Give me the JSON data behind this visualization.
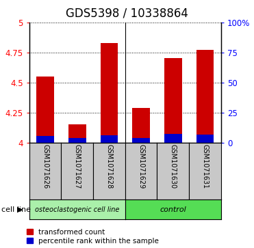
{
  "title": "GDS5398 / 10338864",
  "samples": [
    "GSM1071626",
    "GSM1071627",
    "GSM1071628",
    "GSM1071629",
    "GSM1071630",
    "GSM1071631"
  ],
  "red_values": [
    4.55,
    4.15,
    4.83,
    4.29,
    4.7,
    4.77
  ],
  "blue_bottoms": [
    4.0,
    4.0,
    4.0,
    4.0,
    4.0,
    4.0
  ],
  "blue_heights": [
    0.055,
    0.04,
    0.06,
    0.04,
    0.075,
    0.065
  ],
  "ylim_left": [
    4.0,
    5.0
  ],
  "ylim_right": [
    0,
    100
  ],
  "yticks_left": [
    4.0,
    4.25,
    4.5,
    4.75,
    5.0
  ],
  "yticks_right": [
    0,
    25,
    50,
    75,
    100
  ],
  "ytick_labels_left": [
    "4",
    "4.25",
    "4.5",
    "4.75",
    "5"
  ],
  "ytick_labels_right": [
    "0",
    "25",
    "50",
    "75",
    "100%"
  ],
  "groups": [
    {
      "label": "osteoclastogenic cell line",
      "samples": [
        0,
        1,
        2
      ],
      "color": "#aaf0aa"
    },
    {
      "label": "control",
      "samples": [
        3,
        4,
        5
      ],
      "color": "#55dd55"
    }
  ],
  "cell_line_label": "cell line",
  "bar_color_red": "#cc0000",
  "bar_color_blue": "#0000cc",
  "bar_width": 0.55,
  "legend_items": [
    "transformed count",
    "percentile rank within the sample"
  ],
  "background_labels": "#c8c8c8",
  "title_fontsize": 12,
  "tick_fontsize": 8.5,
  "sample_fontsize": 7,
  "group_fontsize": 8
}
